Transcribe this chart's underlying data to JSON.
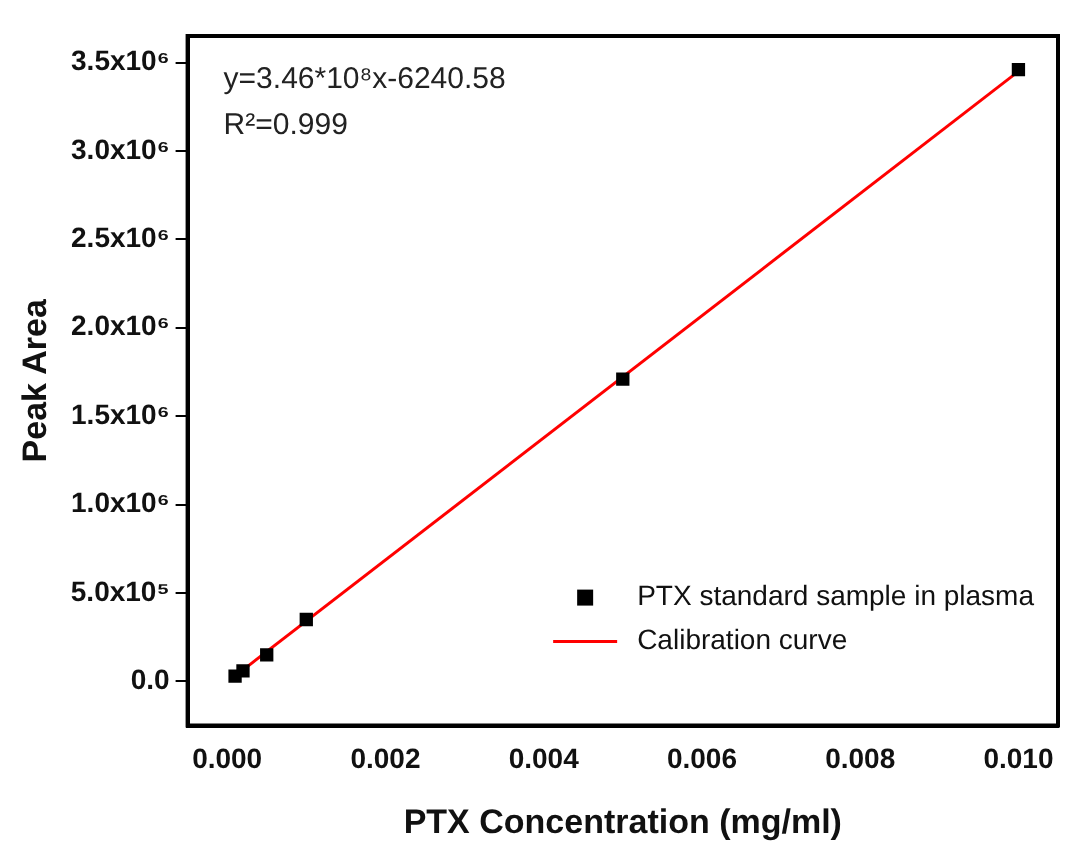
{
  "chart_data": {
    "type": "scatter",
    "xlabel": "PTX Concentration (mg/ml)",
    "ylabel": "Peak Area",
    "annotations": [
      "y=3.46*10⁸x-6240.58",
      "R²=0.999"
    ],
    "xlim": [
      -0.0005,
      0.0105
    ],
    "xticks": [
      {
        "value": 0,
        "label": "0.000"
      },
      {
        "value": 0.002,
        "label": "0.002"
      },
      {
        "value": 0.004,
        "label": "0.004"
      },
      {
        "value": 0.006,
        "label": "0.006"
      },
      {
        "value": 0.008,
        "label": "0.008"
      },
      {
        "value": 0.01,
        "label": "0.010"
      }
    ],
    "ylim": [
      -250000,
      3650000
    ],
    "yticks": [
      {
        "value": 0,
        "label": "0.0"
      },
      {
        "value": 500000,
        "label": "5.0x10⁵"
      },
      {
        "value": 1000000,
        "label": "1.0x10⁶"
      },
      {
        "value": 1500000,
        "label": "1.5x10⁶"
      },
      {
        "value": 2000000,
        "label": "2.0x10⁶"
      },
      {
        "value": 2500000,
        "label": "2.5x10⁶"
      },
      {
        "value": 3000000,
        "label": "3.0x10⁶"
      },
      {
        "value": 3500000,
        "label": "3.5x10⁶"
      }
    ],
    "grid": false,
    "legend": "bottom right",
    "marker": "square",
    "series": [
      {
        "name": "PTX standard sample in plasma",
        "color": "#000000",
        "x": [
          0.0001,
          0.0002,
          0.0005,
          0.001,
          0.005,
          0.01
        ],
        "values": [
          30000,
          60000,
          150000,
          350000,
          1710000,
          3460000
        ]
      },
      {
        "name": "Calibration curve",
        "type": "line",
        "marker": "none",
        "color": "#ff0000",
        "x": [
          0.0001,
          0.01
        ],
        "values": [
          30000,
          3450000
        ]
      }
    ]
  }
}
